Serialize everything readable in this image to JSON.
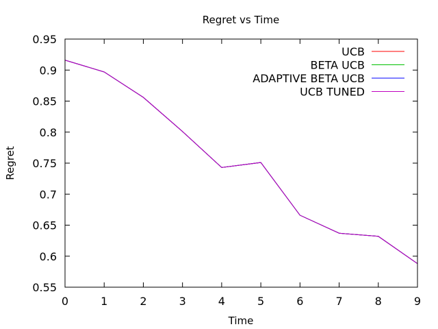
{
  "chart_data": {
    "type": "line",
    "title": "Regret vs Time",
    "xlabel": "Time",
    "ylabel": "Regret",
    "xlim": [
      0,
      9
    ],
    "ylim": [
      0.55,
      0.95
    ],
    "x_ticks": [
      0,
      1,
      2,
      3,
      4,
      5,
      6,
      7,
      8,
      9
    ],
    "x_tick_labels": [
      "0",
      "1",
      "2",
      "3",
      "4",
      "5",
      "6",
      "7",
      "8",
      "9"
    ],
    "y_ticks": [
      0.55,
      0.6,
      0.65,
      0.7,
      0.75,
      0.8,
      0.85,
      0.9,
      0.95
    ],
    "y_tick_labels": [
      "0.55",
      "0.6",
      "0.65",
      "0.7",
      "0.75",
      "0.8",
      "0.85",
      "0.9",
      "0.95"
    ],
    "grid": false,
    "legend_position": "top-right",
    "x": [
      0,
      1,
      2,
      3,
      4,
      5,
      6,
      7,
      8,
      9
    ],
    "series": [
      {
        "name": "UCB",
        "color": "#ff0000",
        "values": [
          0.916,
          0.897,
          0.856,
          0.801,
          0.743,
          0.751,
          0.666,
          0.637,
          0.632,
          0.588
        ]
      },
      {
        "name": "BETA UCB",
        "color": "#00c000",
        "values": [
          0.916,
          0.897,
          0.856,
          0.801,
          0.743,
          0.751,
          0.666,
          0.637,
          0.632,
          0.588
        ]
      },
      {
        "name": "ADAPTIVE BETA UCB",
        "color": "#0000ff",
        "values": [
          0.916,
          0.897,
          0.856,
          0.801,
          0.743,
          0.751,
          0.666,
          0.637,
          0.632,
          0.588
        ]
      },
      {
        "name": "UCB TUNED",
        "color": "#c000c0",
        "values": [
          0.916,
          0.897,
          0.856,
          0.801,
          0.743,
          0.751,
          0.666,
          0.637,
          0.632,
          0.588
        ]
      }
    ]
  }
}
